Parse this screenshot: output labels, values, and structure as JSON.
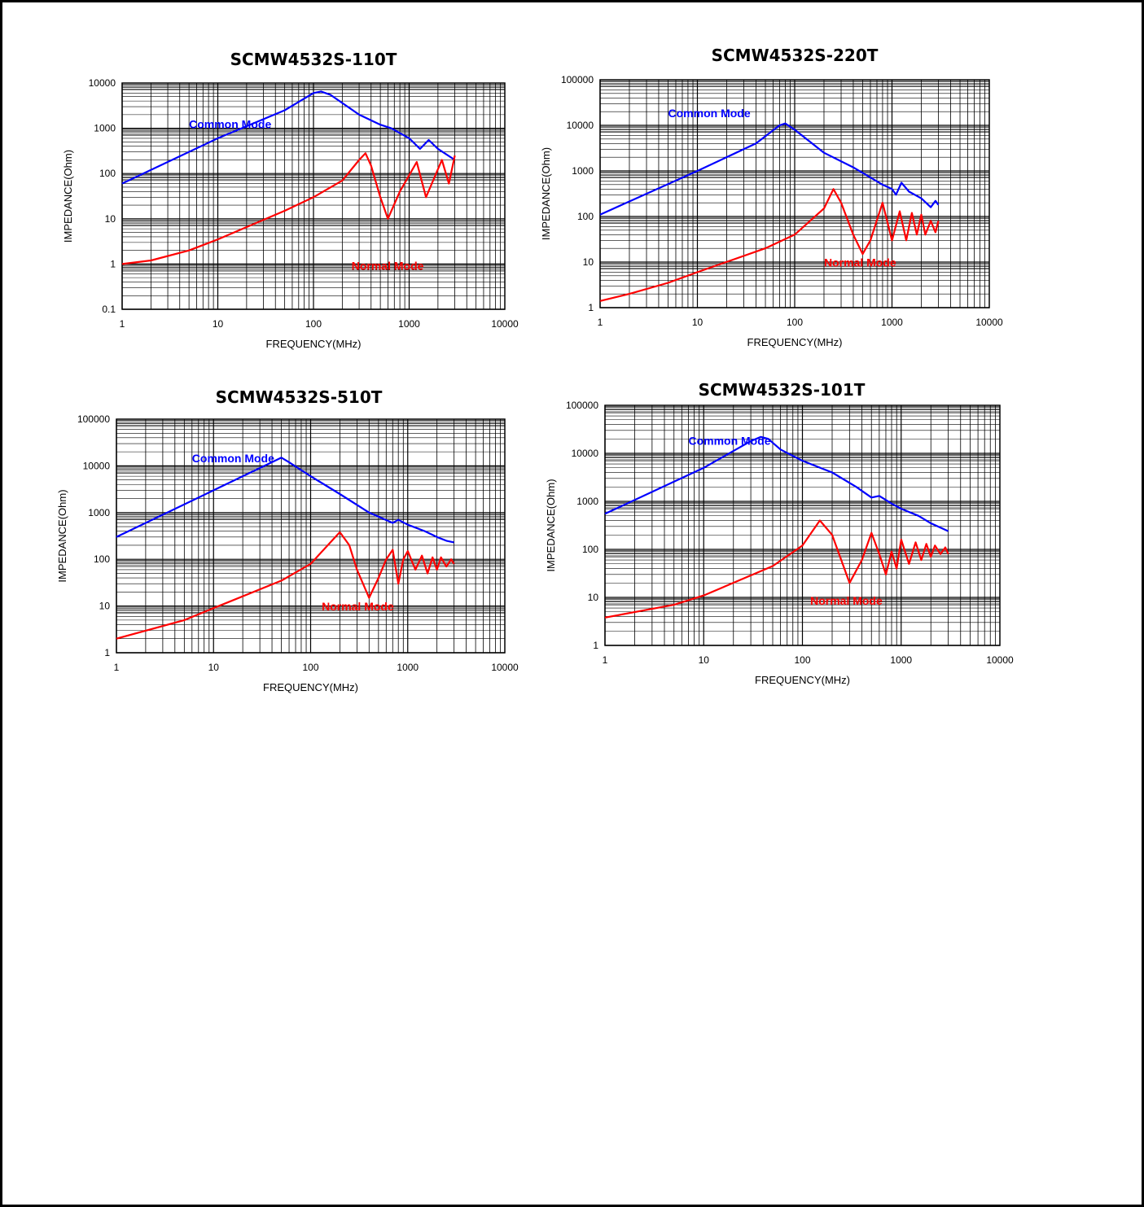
{
  "colors": {
    "common": "#0000ff",
    "normal": "#ff0000",
    "grid": "#000000",
    "frame": "#000000"
  },
  "chart_data": [
    {
      "type": "line",
      "title": "SCMW4532S-110T",
      "xlabel": "FREQUENCY(MHz)",
      "ylabel": "IMPEDANCE(Ohm)",
      "x_scale": "log",
      "y_scale": "log",
      "xlim": [
        1,
        10000
      ],
      "ylim": [
        0.1,
        10000
      ],
      "x_ticks": [
        "1",
        "10",
        "100",
        "1000",
        "10000"
      ],
      "y_ticks": [
        "0.1",
        "1",
        "10",
        "100",
        "1000",
        "10000"
      ],
      "grid": true,
      "series": [
        {
          "name": "Common Mode",
          "color": "#0000ff",
          "x": [
            1,
            10,
            50,
            100,
            120,
            150,
            300,
            500,
            650,
            1000,
            1300,
            1600,
            2000,
            3000
          ],
          "y": [
            60,
            600,
            2500,
            6000,
            6500,
            5500,
            2000,
            1200,
            1000,
            600,
            350,
            550,
            350,
            200
          ]
        },
        {
          "name": "Normal Mode",
          "color": "#ff0000",
          "x": [
            1,
            2,
            5,
            10,
            50,
            100,
            200,
            300,
            350,
            400,
            500,
            600,
            800,
            1200,
            1500,
            2200,
            2600,
            3000
          ],
          "y": [
            1,
            1.2,
            2,
            3.5,
            15,
            30,
            70,
            200,
            280,
            150,
            30,
            10,
            40,
            180,
            30,
            200,
            60,
            250
          ]
        }
      ],
      "annotations": [
        {
          "text": "Common Mode",
          "x": 5,
          "y": 1000
        },
        {
          "text": "Normal Mode",
          "x": 250,
          "y": 0.75
        }
      ]
    },
    {
      "type": "line",
      "title": "SCMW4532S-220T",
      "xlabel": "FREQUENCY(MHz)",
      "ylabel": "IMPEDANCE(Ohm)",
      "x_scale": "log",
      "y_scale": "log",
      "xlim": [
        1,
        10000
      ],
      "ylim": [
        1,
        100000
      ],
      "x_ticks": [
        "1",
        "10",
        "100",
        "1000",
        "10000"
      ],
      "y_ticks": [
        "1",
        "10",
        "100",
        "1000",
        "10000",
        "100000"
      ],
      "grid": true,
      "series": [
        {
          "name": "Common Mode",
          "color": "#0000ff",
          "x": [
            1,
            10,
            40,
            70,
            80,
            100,
            200,
            400,
            800,
            1000,
            1100,
            1250,
            1500,
            2000,
            2500,
            2800,
            3000
          ],
          "y": [
            110,
            1000,
            4000,
            10000,
            11000,
            8000,
            2500,
            1200,
            500,
            400,
            300,
            550,
            350,
            250,
            160,
            220,
            180
          ]
        },
        {
          "name": "Normal Mode",
          "color": "#ff0000",
          "x": [
            1,
            2,
            5,
            10,
            50,
            100,
            200,
            250,
            300,
            400,
            500,
            600,
            800,
            1000,
            1200,
            1400,
            1600,
            1800,
            2000,
            2200,
            2500,
            2800,
            3000
          ],
          "y": [
            1.4,
            2,
            3.5,
            6,
            20,
            40,
            150,
            400,
            200,
            40,
            15,
            30,
            200,
            30,
            130,
            30,
            120,
            40,
            110,
            40,
            80,
            45,
            80
          ]
        }
      ],
      "annotations": [
        {
          "text": "Common Mode",
          "x": 5,
          "y": 15000
        },
        {
          "text": "Normal Mode",
          "x": 200,
          "y": 8
        }
      ]
    },
    {
      "type": "line",
      "title": "SCMW4532S-510T",
      "xlabel": "FREQUENCY(MHz)",
      "ylabel": "IMPEDANCE(Ohm)",
      "x_scale": "log",
      "y_scale": "log",
      "xlim": [
        1,
        10000
      ],
      "ylim": [
        1,
        100000
      ],
      "x_ticks": [
        "1",
        "10",
        "100",
        "1000",
        "10000"
      ],
      "y_ticks": [
        "1",
        "10",
        "100",
        "1000",
        "10000",
        "100000"
      ],
      "grid": true,
      "series": [
        {
          "name": "Common Mode",
          "color": "#0000ff",
          "x": [
            1,
            10,
            40,
            50,
            60,
            100,
            200,
            400,
            700,
            800,
            1000,
            1500,
            2000,
            2500,
            3000
          ],
          "y": [
            300,
            3000,
            12000,
            15000,
            12000,
            6000,
            2500,
            1000,
            600,
            700,
            550,
            400,
            300,
            250,
            230
          ]
        },
        {
          "name": "Normal Mode",
          "color": "#ff0000",
          "x": [
            1,
            5,
            10,
            50,
            100,
            180,
            200,
            250,
            300,
            400,
            500,
            600,
            700,
            800,
            900,
            1000,
            1200,
            1400,
            1600,
            1800,
            2000,
            2200,
            2500,
            2800,
            3000
          ],
          "y": [
            2,
            5,
            9,
            35,
            80,
            300,
            380,
            200,
            60,
            15,
            40,
            100,
            160,
            30,
            100,
            150,
            60,
            120,
            50,
            110,
            60,
            110,
            70,
            100,
            80
          ]
        }
      ],
      "annotations": [
        {
          "text": "Common Mode",
          "x": 6,
          "y": 12000
        },
        {
          "text": "Normal Mode",
          "x": 130,
          "y": 8
        }
      ]
    },
    {
      "type": "line",
      "title": "SCMW4532S-101T",
      "xlabel": "FREQUENCY(MHz)",
      "ylabel": "IMPEDANCE(Ohm)",
      "x_scale": "log",
      "y_scale": "log",
      "xlim": [
        1,
        10000
      ],
      "ylim": [
        1,
        100000
      ],
      "x_ticks": [
        "1",
        "10",
        "100",
        "1000",
        "10000"
      ],
      "y_ticks": [
        "1",
        "10",
        "100",
        "1000",
        "10000",
        "100000"
      ],
      "grid": true,
      "series": [
        {
          "name": "Common Mode",
          "color": "#0000ff",
          "x": [
            1,
            10,
            30,
            38,
            45,
            60,
            100,
            200,
            350,
            500,
            600,
            800,
            1000,
            1500,
            2000,
            3000
          ],
          "y": [
            550,
            5000,
            18000,
            22000,
            20000,
            12000,
            7000,
            4000,
            2000,
            1200,
            1300,
            900,
            700,
            500,
            350,
            240
          ]
        },
        {
          "name": "Normal Mode",
          "color": "#ff0000",
          "x": [
            1,
            5,
            10,
            50,
            100,
            150,
            200,
            300,
            400,
            500,
            600,
            700,
            800,
            900,
            1000,
            1200,
            1400,
            1600,
            1800,
            2000,
            2200,
            2500,
            2800,
            3000
          ],
          "y": [
            3.8,
            7,
            11,
            45,
            120,
            400,
            200,
            20,
            60,
            220,
            80,
            30,
            90,
            40,
            160,
            50,
            140,
            60,
            130,
            70,
            120,
            80,
            110,
            80
          ]
        }
      ],
      "annotations": [
        {
          "text": "Common Mode",
          "x": 7,
          "y": 15000
        },
        {
          "text": "Normal Mode",
          "x": 120,
          "y": 7
        }
      ]
    }
  ]
}
